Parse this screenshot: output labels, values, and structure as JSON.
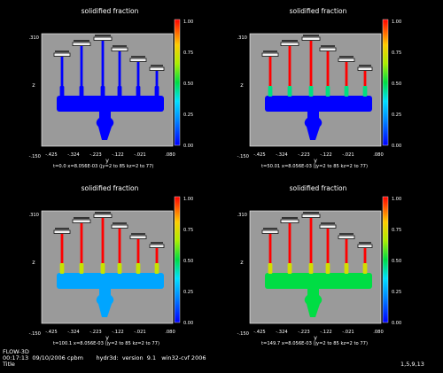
{
  "footer": {
    "app": "FLOW-3D",
    "run_info": "00:17:13  09/10/2006 cpbm       hydr3d:  version  9.1   win32-cvf 2006",
    "title": "Title",
    "page_ref": "1,5,9,13"
  },
  "chart_data": [
    {
      "type": "heatmap",
      "title": "solidified fraction",
      "xlabel": "y",
      "ylabel": "z",
      "x_ticks": [
        "-.425",
        "-.324",
        "-.223",
        "-.122",
        "-.021",
        ".080"
      ],
      "x_start_label": "-.150",
      "y_top_label": ".310",
      "caption": "t=0.0  x=8.056E-03  (jy=2 to 85 kz=2 to 77)",
      "colorbar_ticks": [
        "1.00",
        "0.75",
        "0.50",
        "0.25",
        "0.00"
      ],
      "state": {
        "plate": 0.0,
        "gates": 0.0,
        "fingers": 0.0,
        "caps": 1.0
      }
    },
    {
      "type": "heatmap",
      "title": "solidified fraction",
      "xlabel": "y",
      "ylabel": "z",
      "x_ticks": [
        "-.425",
        "-.324",
        "-.223",
        "-.122",
        "-.021",
        ".080"
      ],
      "x_start_label": "-.150",
      "y_top_label": ".310",
      "caption": "t=50.01  x=8.056E-03  (jy=2 to 85 kz=2 to 77)",
      "colorbar_ticks": [
        "1.00",
        "0.75",
        "0.50",
        "0.25",
        "0.00"
      ],
      "state": {
        "plate": 0.0,
        "gates": 0.45,
        "fingers": 1.0,
        "caps": 1.0
      }
    },
    {
      "type": "heatmap",
      "title": "solidified fraction",
      "xlabel": "y",
      "ylabel": "z",
      "x_ticks": [
        "-.425",
        "-.324",
        "-.223",
        "-.122",
        "-.021",
        ".080"
      ],
      "x_start_label": "-.150",
      "y_top_label": ".310",
      "caption": "t=100.1  x=8.056E-03  (jy=2 to 85 kz=2 to 77)",
      "colorbar_ticks": [
        "1.00",
        "0.75",
        "0.50",
        "0.25",
        "0.00"
      ],
      "state": {
        "plate": 0.25,
        "gates": 0.7,
        "fingers": 1.0,
        "caps": 1.0
      }
    },
    {
      "type": "heatmap",
      "title": "solidified fraction",
      "xlabel": "y",
      "ylabel": "z",
      "x_ticks": [
        "-.425",
        "-.324",
        "-.223",
        "-.122",
        "-.021",
        ".080"
      ],
      "x_start_label": "-.150",
      "y_top_label": ".310",
      "caption": "t=149.7  x=8.056E-03  (jy=2 to 85 kz=2 to 77)",
      "colorbar_ticks": [
        "1.00",
        "0.75",
        "0.50",
        "0.25",
        "0.00"
      ],
      "state": {
        "plate": 0.5,
        "gates": 0.72,
        "fingers": 1.0,
        "caps": 1.0
      }
    }
  ]
}
